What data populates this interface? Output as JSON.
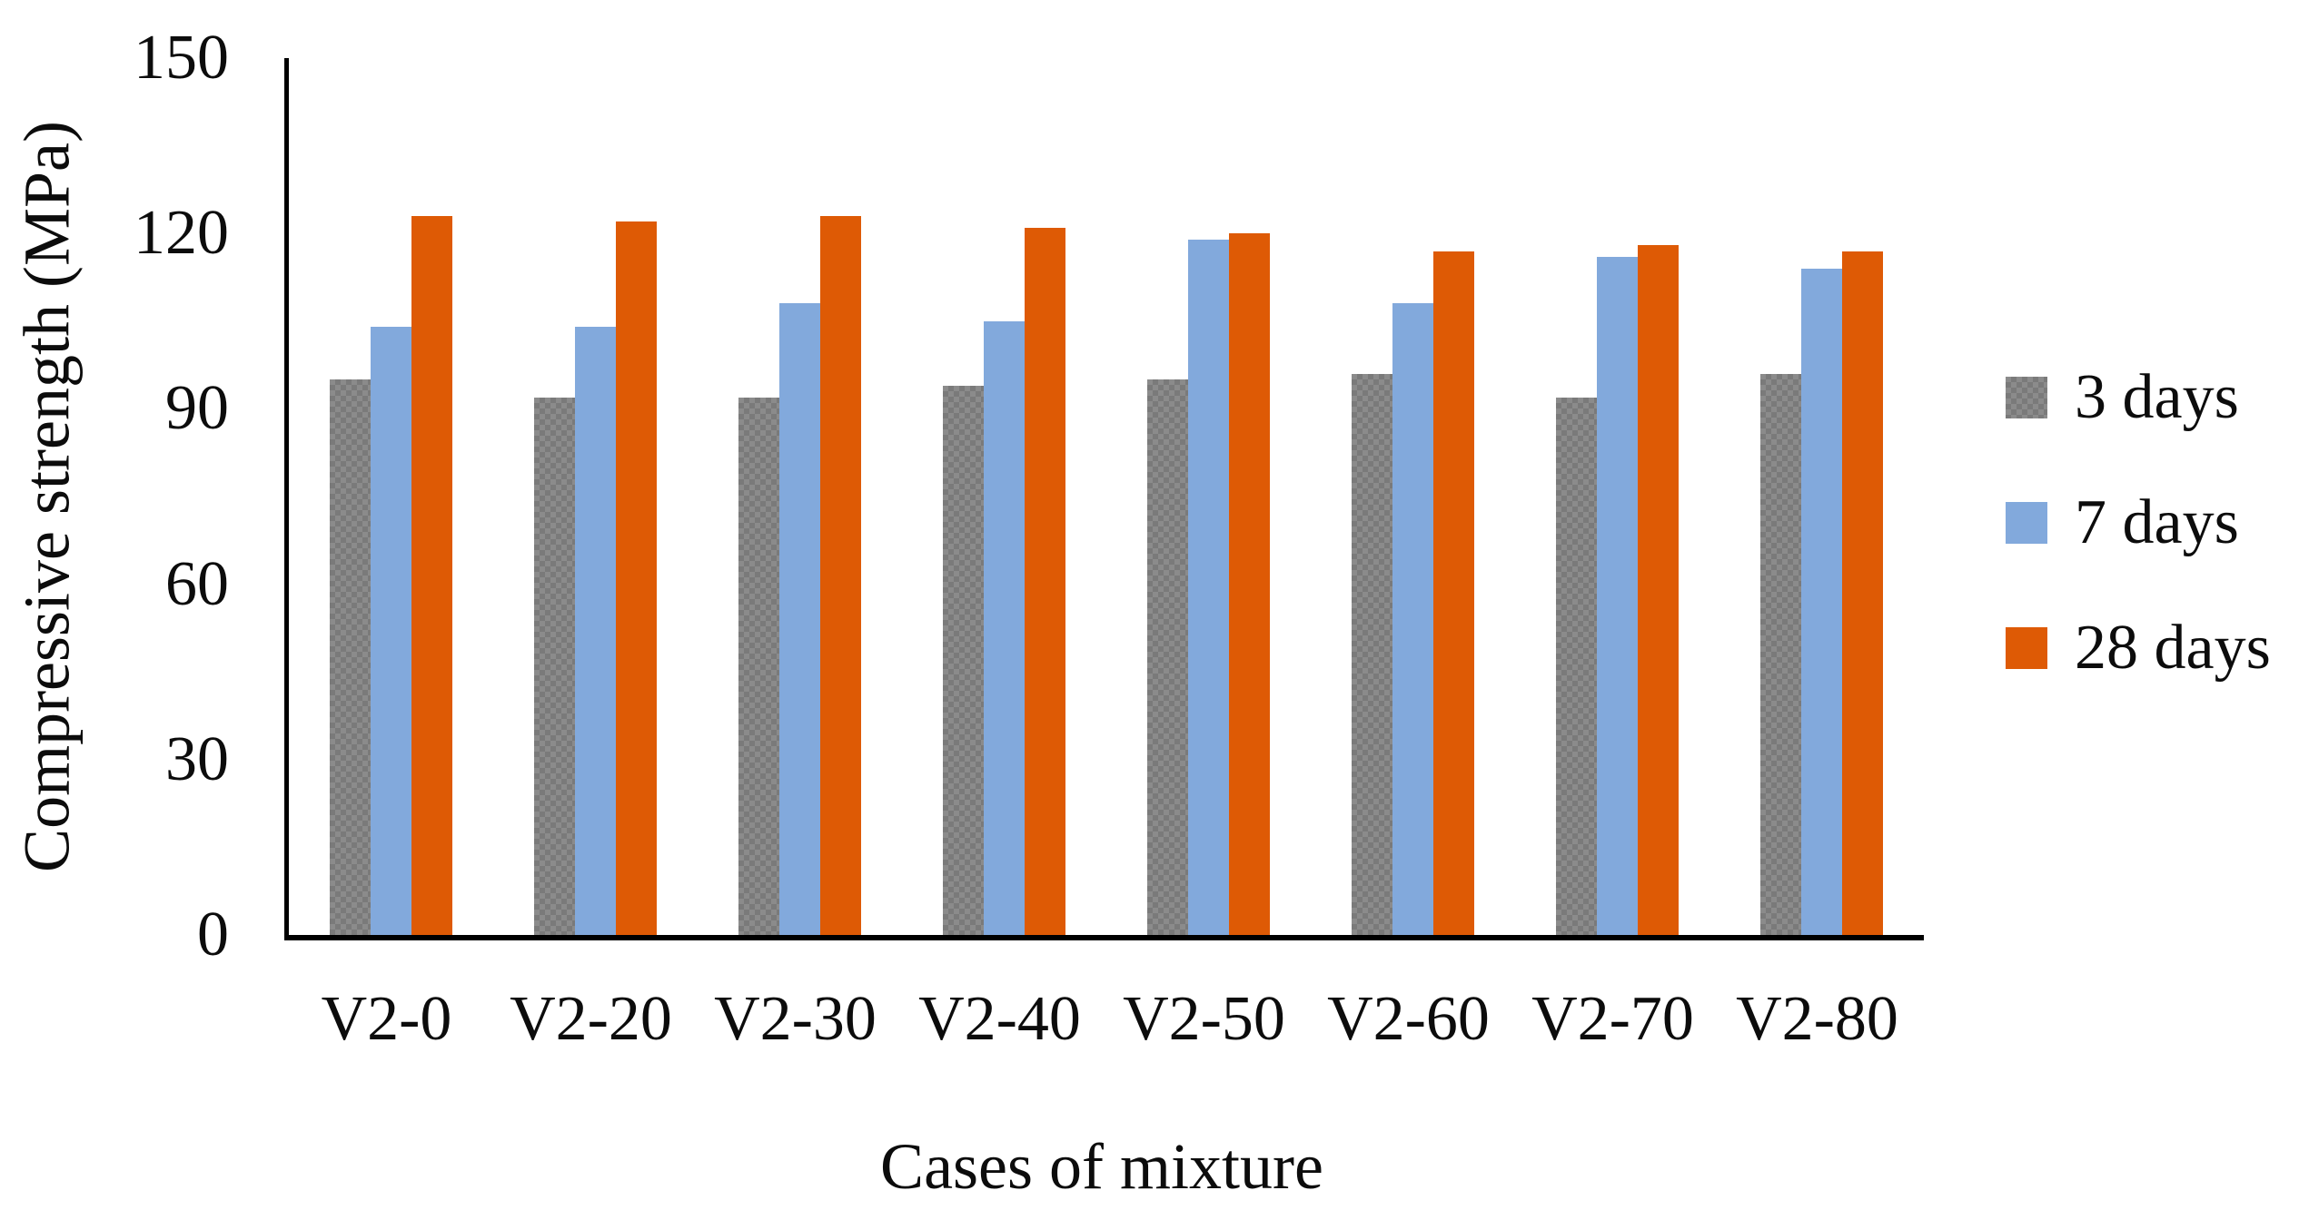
{
  "chart_data": {
    "type": "bar",
    "title": "",
    "xlabel": "Cases of mixture",
    "ylabel": "Compressive strength (MPa)",
    "categories": [
      "V2-0",
      "V2-20",
      "V2-30",
      "V2-40",
      "V2-50",
      "V2-60",
      "V2-70",
      "V2-80"
    ],
    "series": [
      {
        "name": "3 days",
        "color": "#8b8b8b",
        "pattern": "checker",
        "values": [
          95,
          92,
          92,
          94,
          95,
          96,
          92,
          96
        ]
      },
      {
        "name": "7 days",
        "color": "#82a9dc",
        "pattern": "solid",
        "values": [
          104,
          104,
          108,
          105,
          119,
          108,
          116,
          114
        ]
      },
      {
        "name": "28 days",
        "color": "#de5a05",
        "pattern": "solid",
        "values": [
          123,
          122,
          123,
          121,
          120,
          117,
          118,
          117
        ]
      }
    ],
    "ylim": [
      0,
      150
    ],
    "yticks": [
      0,
      30,
      60,
      90,
      120,
      150
    ],
    "grid": false,
    "legend_position": "right"
  }
}
